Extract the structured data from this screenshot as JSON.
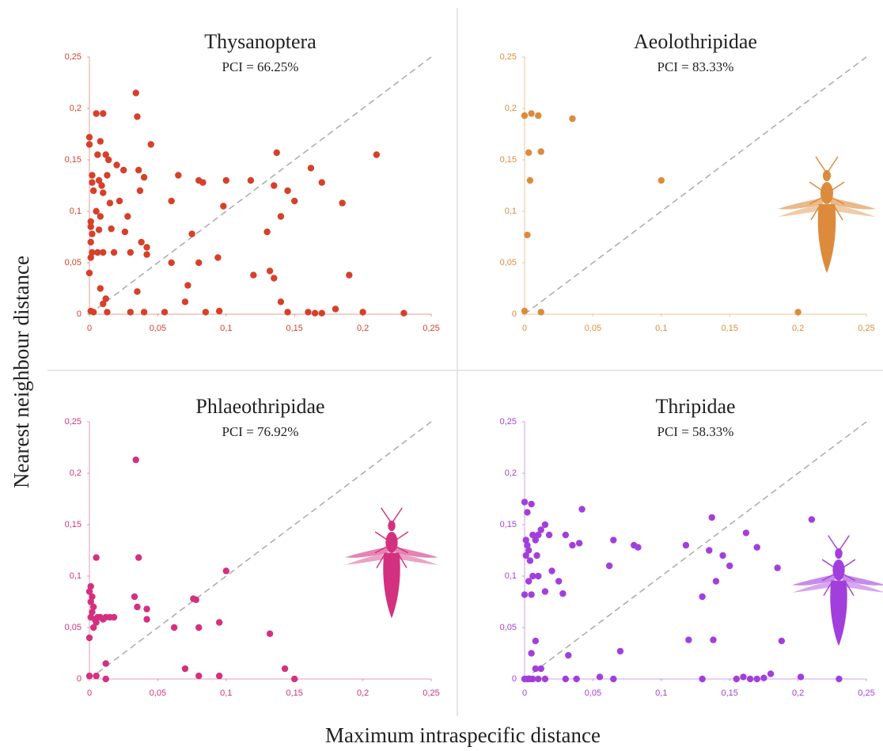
{
  "xlabel": "Maximum intraspecific distance",
  "ylabel": "Nearest neighbour distance",
  "chart_data": [
    {
      "type": "scatter",
      "title": "Thysanoptera",
      "subtitle": "PCI = 66.25%",
      "color": "#d6402a",
      "xlim": [
        0,
        0.25
      ],
      "ylim": [
        0,
        0.25
      ],
      "xticks": [
        0,
        {
          "value": 0.05,
          "label": "0,05"
        },
        {
          "value": 0.1,
          "label": "0,1"
        },
        {
          "value": 0.15,
          "label": "0,15"
        },
        {
          "value": 0.2,
          "label": "0,2"
        },
        {
          "value": 0.25,
          "label": "0,25"
        }
      ],
      "yticks": [
        0,
        {
          "value": 0.05,
          "label": "0,05"
        },
        {
          "value": 0.1,
          "label": "0,1"
        },
        {
          "value": 0.15,
          "label": "0,15"
        },
        {
          "value": 0.2,
          "label": "0,2"
        },
        {
          "value": 0.25,
          "label": "0,25"
        }
      ],
      "x": [
        0,
        0,
        0.002,
        0.002,
        0.003,
        0.001,
        0.001,
        0.002,
        0.001,
        0.002,
        0.001,
        0,
        0.001,
        0.003,
        0.005,
        0.01,
        0.008,
        0.006,
        0.007,
        0.009,
        0.01,
        0.005,
        0.008,
        0.007,
        0.006,
        0.01,
        0.012,
        0.014,
        0.013,
        0.015,
        0.016,
        0.018,
        0.012,
        0.01,
        0.008,
        0.013,
        0.02,
        0.025,
        0.022,
        0.028,
        0.026,
        0.03,
        0.034,
        0.035,
        0.036,
        0.04,
        0.045,
        0.037,
        0.038,
        0.042,
        0.042,
        0.035,
        0.03,
        0.04,
        0.06,
        0.065,
        0.06,
        0.055,
        0.075,
        0.08,
        0.083,
        0.08,
        0.072,
        0.07,
        0.085,
        0.1,
        0.098,
        0.094,
        0.095,
        0.118,
        0.12,
        0.13,
        0.132,
        0.135,
        0.137,
        0.14,
        0.145,
        0.15,
        0.14,
        0.145,
        0.162,
        0.17,
        0.185,
        0.19,
        0.21,
        0.2,
        0.23,
        0.16,
        0.165,
        0.17,
        0.18,
        0.135
      ],
      "values": [
        0.172,
        0.165,
        0.135,
        0.128,
        0.12,
        0.09,
        0.085,
        0.078,
        0.07,
        0.06,
        0.055,
        0.04,
        0.003,
        0.002,
        0.195,
        0.195,
        0.168,
        0.155,
        0.13,
        0.125,
        0.118,
        0.1,
        0.095,
        0.082,
        0.06,
        0.06,
        0.155,
        0.15,
        0.135,
        0.108,
        0.083,
        0.06,
        0.015,
        0.01,
        0.025,
        0.002,
        0.145,
        0.14,
        0.11,
        0.095,
        0.08,
        0.06,
        0.215,
        0.192,
        0.14,
        0.133,
        0.165,
        0.12,
        0.07,
        0.065,
        0.058,
        0.022,
        0.002,
        0.002,
        0.11,
        0.135,
        0.05,
        0.002,
        0.078,
        0.13,
        0.128,
        0.05,
        0.028,
        0.012,
        0.002,
        0.13,
        0.105,
        0.055,
        0.003,
        0.13,
        0.038,
        0.08,
        0.042,
        0.125,
        0.157,
        0.095,
        0.12,
        0.11,
        0.012,
        0.002,
        0.142,
        0.128,
        0.108,
        0.038,
        0.155,
        0.002,
        0.001,
        0.002,
        0.001,
        0.001,
        0.005,
        0.035
      ]
    },
    {
      "type": "scatter",
      "title": "Aeolothripidae",
      "subtitle": "PCI = 83.33%",
      "color": "#dc8b3c",
      "xlim": [
        0,
        0.25
      ],
      "ylim": [
        0,
        0.25
      ],
      "xticks": [
        0,
        {
          "value": 0.05,
          "label": "0,05"
        },
        {
          "value": 0.1,
          "label": "0,1"
        },
        {
          "value": 0.15,
          "label": "0,15"
        },
        {
          "value": 0.2,
          "label": "0,2"
        },
        {
          "value": 0.25,
          "label": "0,25"
        }
      ],
      "yticks": [
        0,
        {
          "value": 0.05,
          "label": "0,05"
        },
        {
          "value": 0.1,
          "label": "0,1"
        },
        {
          "value": 0.15,
          "label": "0,15"
        },
        {
          "value": 0.2,
          "label": "0,2"
        },
        {
          "value": 0.25,
          "label": "0,25"
        }
      ],
      "x": [
        0,
        0.005,
        0.01,
        0.035,
        0.003,
        0.012,
        0.004,
        0.1,
        0.002,
        0,
        0.012,
        0.2
      ],
      "values": [
        0.193,
        0.195,
        0.193,
        0.19,
        0.157,
        0.158,
        0.13,
        0.13,
        0.077,
        0.003,
        0.002,
        0.002
      ]
    },
    {
      "type": "scatter",
      "title": "Phlaeothripidae",
      "subtitle": "PCI = 76.92%",
      "color": "#d3317f",
      "xlim": [
        0,
        0.25
      ],
      "ylim": [
        0,
        0.25
      ],
      "xticks": [
        0,
        {
          "value": 0.05,
          "label": "0,05"
        },
        {
          "value": 0.1,
          "label": "0,1"
        },
        {
          "value": 0.15,
          "label": "0,15"
        },
        {
          "value": 0.2,
          "label": "0,2"
        },
        {
          "value": 0.25,
          "label": "0,25"
        }
      ],
      "yticks": [
        0,
        {
          "value": 0.05,
          "label": "0,05"
        },
        {
          "value": 0.1,
          "label": "0,1"
        },
        {
          "value": 0.15,
          "label": "0,15"
        },
        {
          "value": 0.2,
          "label": "0,2"
        },
        {
          "value": 0.25,
          "label": "0,25"
        }
      ],
      "x": [
        0,
        0.001,
        0.002,
        0.001,
        0.003,
        0.002,
        0.001,
        0.004,
        0.005,
        0.003,
        0,
        0.006,
        0.008,
        0.01,
        0.012,
        0.015,
        0.018,
        0.005,
        0,
        0.005,
        0.012,
        0.012,
        0.034,
        0.036,
        0.033,
        0.035,
        0.042,
        0.042,
        0.062,
        0.07,
        0.076,
        0.078,
        0.08,
        0.08,
        0.095,
        0.095,
        0.1,
        0.132,
        0.143,
        0.15
      ],
      "values": [
        0.085,
        0.09,
        0.08,
        0.075,
        0.07,
        0.065,
        0.06,
        0.058,
        0.055,
        0.05,
        0.04,
        0.06,
        0.06,
        0.058,
        0.06,
        0.06,
        0.06,
        0.118,
        0.003,
        0.003,
        0.015,
        0,
        0.213,
        0.118,
        0.08,
        0.07,
        0.068,
        0.058,
        0.05,
        0.01,
        0.078,
        0.077,
        0.05,
        0.003,
        0.055,
        0.003,
        0.105,
        0.044,
        0.01,
        0
      ]
    },
    {
      "type": "scatter",
      "title": "Thripidae",
      "subtitle": "PCI = 58.33%",
      "color": "#a23fdc",
      "xlim": [
        0,
        0.25
      ],
      "ylim": [
        0,
        0.25
      ],
      "xticks": [
        0,
        {
          "value": 0.05,
          "label": "0,05"
        },
        {
          "value": 0.1,
          "label": "0,1"
        },
        {
          "value": 0.15,
          "label": "0,15"
        },
        {
          "value": 0.2,
          "label": "0,2"
        },
        {
          "value": 0.25,
          "label": "0,25"
        }
      ],
      "yticks": [
        0,
        {
          "value": 0.05,
          "label": "0,05"
        },
        {
          "value": 0.1,
          "label": "0,1"
        },
        {
          "value": 0.15,
          "label": "0,15"
        },
        {
          "value": 0.2,
          "label": "0,2"
        },
        {
          "value": 0.25,
          "label": "0,25"
        }
      ],
      "x": [
        0,
        0.002,
        0.005,
        0.001,
        0.002,
        0.003,
        0.001,
        0.004,
        0.006,
        0.008,
        0.01,
        0.012,
        0.015,
        0.006,
        0.003,
        0,
        0.005,
        0.009,
        0.01,
        0.018,
        0.02,
        0.025,
        0.028,
        0.03,
        0.035,
        0.04,
        0.042,
        0.015,
        0.008,
        0.005,
        0.008,
        0.012,
        0,
        0.002,
        0.004,
        0.006,
        0.01,
        0.015,
        0.03,
        0.038,
        0.055,
        0.065,
        0.032,
        0.062,
        0.065,
        0.07,
        0.08,
        0.083,
        0.118,
        0.12,
        0.13,
        0.13,
        0.137,
        0.135,
        0.14,
        0.145,
        0.15,
        0.138,
        0.155,
        0.16,
        0.165,
        0.17,
        0.175,
        0.18,
        0.162,
        0.17,
        0.185,
        0.188,
        0.21,
        0.202,
        0.23
      ],
      "values": [
        0.172,
        0.162,
        0.17,
        0.135,
        0.13,
        0.125,
        0.12,
        0.115,
        0.14,
        0.135,
        0.14,
        0.145,
        0.15,
        0.1,
        0.095,
        0.082,
        0.082,
        0.12,
        0.1,
        0.14,
        0.105,
        0.095,
        0.083,
        0.14,
        0.13,
        0.132,
        0.165,
        0.085,
        0.037,
        0.025,
        0.01,
        0.01,
        0,
        0,
        0,
        0,
        0,
        0,
        0,
        0,
        0.002,
        0,
        0.023,
        0.11,
        0.135,
        0.027,
        0.13,
        0.128,
        0.13,
        0.038,
        0.08,
        0,
        0.157,
        0.125,
        0.095,
        0.12,
        0.11,
        0.038,
        0,
        0.002,
        0,
        0,
        0.001,
        0.005,
        0.142,
        0.128,
        0.108,
        0.037,
        0.155,
        0.002,
        0
      ]
    }
  ]
}
